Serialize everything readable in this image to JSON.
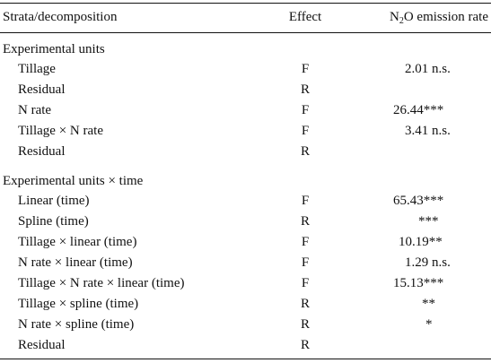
{
  "header": {
    "col_label": "Strata/decomposition",
    "col_effect": "Effect",
    "col_rate_prefix": "N",
    "col_rate_sub": "2",
    "col_rate_suffix": "O emission rate"
  },
  "sections": [
    {
      "title": "Experimental units",
      "rows": [
        {
          "label": "Tillage",
          "effect": "F",
          "rate": "2.01 n.s."
        },
        {
          "label": "Residual",
          "effect": "R",
          "rate": ""
        },
        {
          "label": "N rate",
          "effect": "F",
          "rate": "26.44***"
        },
        {
          "label": "Tillage × N rate",
          "effect": "F",
          "rate": "3.41 n.s."
        },
        {
          "label": "Residual",
          "effect": "R",
          "rate": ""
        }
      ]
    },
    {
      "title": "Experimental units × time",
      "rows": [
        {
          "label": "Linear (time)",
          "effect": "F",
          "rate": "65.43***"
        },
        {
          "label": "Spline (time)",
          "effect": "R",
          "rate": "***"
        },
        {
          "label": "Tillage × linear (time)",
          "effect": "F",
          "rate": "10.19**"
        },
        {
          "label": "N rate × linear (time)",
          "effect": "F",
          "rate": "1.29 n.s."
        },
        {
          "label": "Tillage × N rate × linear (time)",
          "effect": "F",
          "rate": "15.13***"
        },
        {
          "label": "Tillage × spline (time)",
          "effect": "R",
          "rate": "**"
        },
        {
          "label": "N rate × spline (time)",
          "effect": "R",
          "rate": "*"
        },
        {
          "label": "Residual",
          "effect": "R",
          "rate": ""
        }
      ]
    }
  ]
}
